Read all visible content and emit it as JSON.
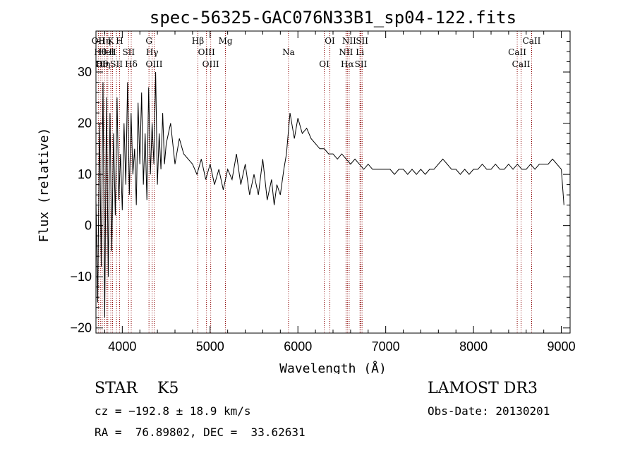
{
  "chart_data": {
    "type": "line",
    "title": "spec-56325-GAC076N33B1_sp04-122.fits",
    "xlabel": "Wavelength (Å)",
    "ylabel": "Flux (relative)",
    "xlim": [
      3700,
      9100
    ],
    "ylim": [
      -21,
      38
    ],
    "xticks": [
      4000,
      5000,
      6000,
      7000,
      8000,
      9000
    ],
    "yticks": [
      -20,
      -10,
      0,
      10,
      20,
      30
    ],
    "xtick_labels": [
      "4000",
      "5000",
      "6000",
      "7000",
      "8000",
      "9000"
    ],
    "ytick_labels": [
      "−20",
      "−10",
      "0",
      "10",
      "20",
      "30"
    ],
    "grid": false,
    "series": [
      {
        "name": "flux",
        "x": [
          3700,
          3720,
          3740,
          3760,
          3780,
          3800,
          3820,
          3840,
          3860,
          3880,
          3900,
          3920,
          3940,
          3960,
          3980,
          4000,
          4020,
          4040,
          4060,
          4080,
          4100,
          4120,
          4140,
          4160,
          4180,
          4200,
          4220,
          4240,
          4260,
          4280,
          4300,
          4320,
          4340,
          4360,
          4380,
          4400,
          4420,
          4440,
          4460,
          4480,
          4500,
          4550,
          4600,
          4650,
          4700,
          4750,
          4800,
          4850,
          4900,
          4950,
          5000,
          5050,
          5100,
          5150,
          5200,
          5250,
          5300,
          5350,
          5400,
          5450,
          5500,
          5550,
          5600,
          5650,
          5700,
          5730,
          5760,
          5800,
          5840,
          5870,
          5890,
          5910,
          5930,
          5960,
          6000,
          6050,
          6100,
          6150,
          6200,
          6250,
          6300,
          6350,
          6400,
          6450,
          6500,
          6550,
          6600,
          6650,
          6700,
          6750,
          6800,
          6850,
          6900,
          6950,
          7000,
          7050,
          7100,
          7150,
          7200,
          7250,
          7300,
          7350,
          7400,
          7450,
          7500,
          7550,
          7600,
          7650,
          7700,
          7750,
          7800,
          7850,
          7900,
          7950,
          8000,
          8050,
          8100,
          8150,
          8200,
          8250,
          8300,
          8350,
          8400,
          8450,
          8500,
          8550,
          8600,
          8650,
          8700,
          8750,
          8800,
          8850,
          8900,
          8950,
          9000,
          9030
        ],
        "values": [
          5,
          -15,
          20,
          -8,
          28,
          -18,
          25,
          -10,
          22,
          -5,
          18,
          2,
          25,
          5,
          14,
          3,
          20,
          8,
          28,
          6,
          22,
          10,
          15,
          4,
          24,
          12,
          26,
          8,
          18,
          5,
          27,
          10,
          20,
          12,
          30,
          8,
          18,
          11,
          22,
          12,
          16,
          20,
          12,
          17,
          14,
          13,
          12,
          10,
          13,
          9,
          12,
          8,
          11,
          7,
          11,
          9,
          14,
          8,
          12,
          6,
          10,
          6,
          13,
          5,
          9,
          4,
          8,
          6,
          11,
          14,
          18,
          22,
          20,
          17,
          21,
          18,
          19,
          17,
          16,
          15,
          15,
          14,
          14,
          13,
          14,
          13,
          12,
          13,
          12,
          11,
          12,
          11,
          11,
          11,
          11,
          11,
          10,
          11,
          11,
          10,
          11,
          10,
          11,
          10,
          11,
          11,
          12,
          13,
          12,
          11,
          11,
          10,
          11,
          10,
          11,
          11,
          12,
          11,
          11,
          12,
          11,
          11,
          12,
          11,
          12,
          11,
          11,
          12,
          11,
          12,
          12,
          12,
          13,
          12,
          11,
          4
        ]
      }
    ],
    "lines": [
      {
        "x": 3727,
        "labels": [
          "OII"
        ]
      },
      {
        "x": 3750,
        "labels": [
          "Hθ",
          "OI"
        ]
      },
      {
        "x": 3771,
        "labels": [
          "Hθ"
        ]
      },
      {
        "x": 3798,
        "labels": [
          "Hη"
        ]
      },
      {
        "x": 3820,
        "labels": [
          "HeI"
        ]
      },
      {
        "x": 3835,
        "labels": [
          "η"
        ]
      },
      {
        "x": 3869,
        "labels": [
          "K"
        ]
      },
      {
        "x": 3889,
        "labels": [
          "H"
        ]
      },
      {
        "x": 3934,
        "labels": [
          "SII"
        ]
      },
      {
        "x": 3969,
        "labels": [
          "H"
        ]
      },
      {
        "x": 4072,
        "labels": [
          "SII"
        ]
      },
      {
        "x": 4102,
        "labels": [
          "Hδ"
        ]
      },
      {
        "x": 4304,
        "labels": [
          "G"
        ]
      },
      {
        "x": 4340,
        "labels": [
          "Hγ"
        ]
      },
      {
        "x": 4363,
        "labels": [
          "OIII"
        ]
      },
      {
        "x": 4861,
        "labels": [
          "Hβ"
        ]
      },
      {
        "x": 4959,
        "labels": [
          "OIII"
        ]
      },
      {
        "x": 5007,
        "labels": [
          "OIII"
        ]
      },
      {
        "x": 5175,
        "labels": [
          "Mg"
        ]
      },
      {
        "x": 5893,
        "labels": [
          "Na"
        ]
      },
      {
        "x": 6300,
        "labels": [
          "OI"
        ]
      },
      {
        "x": 6364,
        "labels": [
          "OI"
        ]
      },
      {
        "x": 6548,
        "labels": [
          "NII"
        ]
      },
      {
        "x": 6563,
        "labels": [
          "Hα"
        ]
      },
      {
        "x": 6584,
        "labels": [
          "NII"
        ]
      },
      {
        "x": 6707,
        "labels": [
          "Li"
        ]
      },
      {
        "x": 6717,
        "labels": [
          "SII"
        ]
      },
      {
        "x": 6731,
        "labels": [
          "SII"
        ]
      },
      {
        "x": 8498,
        "labels": [
          "CaII"
        ]
      },
      {
        "x": 8542,
        "labels": [
          "CaII"
        ]
      },
      {
        "x": 8662,
        "labels": [
          "CaII"
        ]
      }
    ]
  },
  "info": {
    "classification": "STAR    K5",
    "survey": "LAMOST DR3",
    "redshift": "cz = −192.8 ± 18.9 km/s",
    "obs_date": "Obs-Date: 20130201",
    "coords": "RA =  76.89802, DEC =  33.62631"
  },
  "colors": {
    "spectrum": "#000000",
    "lines": "#8b0000",
    "axis": "#000000"
  }
}
